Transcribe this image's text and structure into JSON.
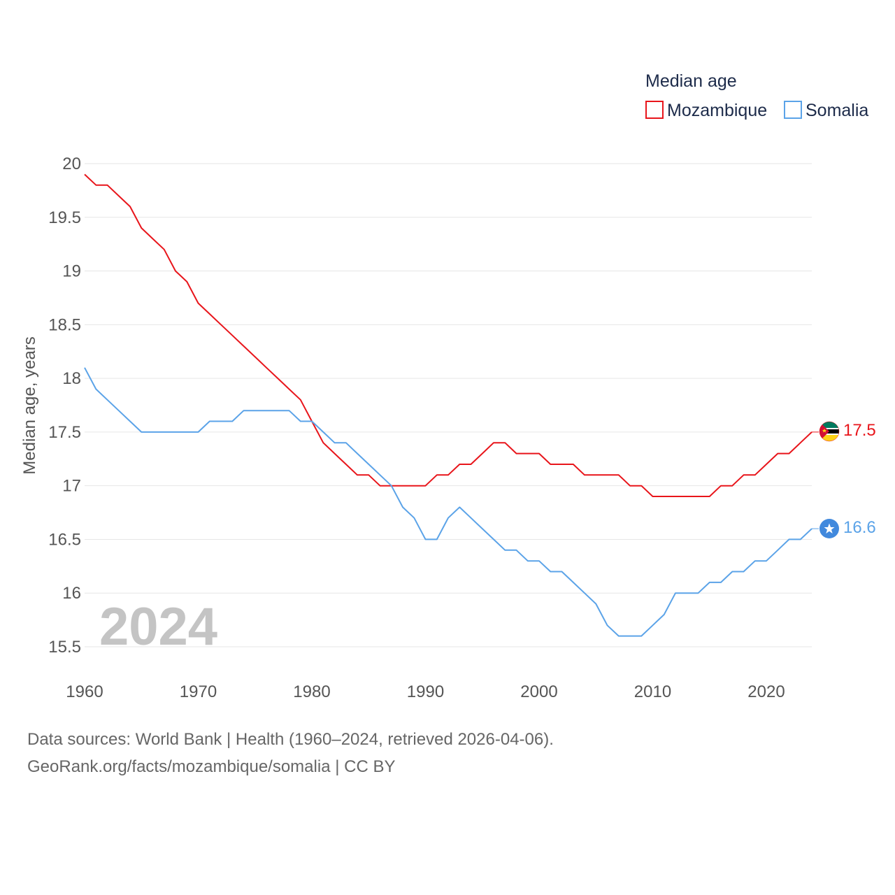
{
  "chart_data": {
    "type": "line",
    "title": "Median age",
    "xlabel": "",
    "ylabel": "Median age, years",
    "xlim": [
      1960,
      2024
    ],
    "ylim": [
      15.5,
      20
    ],
    "x_ticks": [
      1960,
      1970,
      1980,
      1990,
      2000,
      2010,
      2020
    ],
    "y_ticks": [
      15.5,
      16,
      16.5,
      17,
      17.5,
      18,
      18.5,
      19,
      19.5,
      20
    ],
    "x_tick_labels": [
      "1960",
      "1970",
      "1980",
      "1990",
      "2000",
      "2010",
      "2020"
    ],
    "y_tick_labels": [
      "15.5",
      "16",
      "16.5",
      "17",
      "17.5",
      "18",
      "18.5",
      "19",
      "19.5",
      "20"
    ],
    "grid": true,
    "legend_position": "top-right",
    "year_label": "2024",
    "x": [
      1960,
      1961,
      1962,
      1963,
      1964,
      1965,
      1966,
      1967,
      1968,
      1969,
      1970,
      1971,
      1972,
      1973,
      1974,
      1975,
      1976,
      1977,
      1978,
      1979,
      1980,
      1981,
      1982,
      1983,
      1984,
      1985,
      1986,
      1987,
      1988,
      1989,
      1990,
      1991,
      1992,
      1993,
      1994,
      1995,
      1996,
      1997,
      1998,
      1999,
      2000,
      2001,
      2002,
      2003,
      2004,
      2005,
      2006,
      2007,
      2008,
      2009,
      2010,
      2011,
      2012,
      2013,
      2014,
      2015,
      2016,
      2017,
      2018,
      2019,
      2020,
      2021,
      2022,
      2023,
      2024
    ],
    "series": [
      {
        "name": "Mozambique",
        "color": "#e8151b",
        "end_value_label": "17.5",
        "values": [
          19.9,
          19.8,
          19.8,
          19.7,
          19.6,
          19.4,
          19.3,
          19.2,
          19.0,
          18.9,
          18.7,
          18.6,
          18.5,
          18.4,
          18.3,
          18.2,
          18.1,
          18.0,
          17.9,
          17.8,
          17.6,
          17.4,
          17.3,
          17.2,
          17.1,
          17.1,
          17.0,
          17.0,
          17.0,
          17.0,
          17.0,
          17.1,
          17.1,
          17.2,
          17.2,
          17.3,
          17.4,
          17.4,
          17.3,
          17.3,
          17.3,
          17.2,
          17.2,
          17.2,
          17.1,
          17.1,
          17.1,
          17.1,
          17.0,
          17.0,
          16.9,
          16.9,
          16.9,
          16.9,
          16.9,
          16.9,
          17.0,
          17.0,
          17.1,
          17.1,
          17.2,
          17.3,
          17.3,
          17.4,
          17.5
        ]
      },
      {
        "name": "Somalia",
        "color": "#5ba3e8",
        "end_value_label": "16.6",
        "values": [
          18.1,
          17.9,
          17.8,
          17.7,
          17.6,
          17.5,
          17.5,
          17.5,
          17.5,
          17.5,
          17.5,
          17.6,
          17.6,
          17.6,
          17.7,
          17.7,
          17.7,
          17.7,
          17.7,
          17.6,
          17.6,
          17.5,
          17.4,
          17.4,
          17.3,
          17.2,
          17.1,
          17.0,
          16.8,
          16.7,
          16.5,
          16.5,
          16.7,
          16.8,
          16.7,
          16.6,
          16.5,
          16.4,
          16.4,
          16.3,
          16.3,
          16.2,
          16.2,
          16.1,
          16.0,
          15.9,
          15.7,
          15.6,
          15.6,
          15.6,
          15.7,
          15.8,
          16.0,
          16.0,
          16.0,
          16.1,
          16.1,
          16.2,
          16.2,
          16.3,
          16.3,
          16.4,
          16.5,
          16.5,
          16.6
        ]
      }
    ]
  },
  "footer": {
    "sources": "Data sources: World Bank | Health (1960–2024, retrieved 2026-04-06).",
    "credit": "GeoRank.org/facts/mozambique/somalia | CC BY"
  }
}
